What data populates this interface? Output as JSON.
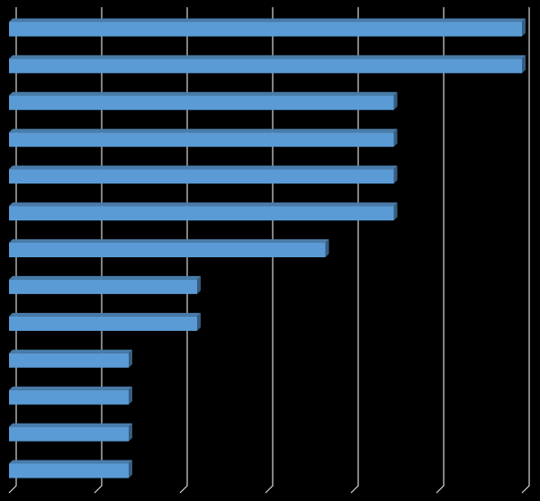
{
  "chart_data": {
    "type": "bar",
    "orientation": "horizontal",
    "categories": [
      null,
      null,
      null,
      null,
      null,
      null,
      null,
      null,
      null,
      null,
      null,
      null,
      null
    ],
    "values": [
      6,
      6,
      4.5,
      4.5,
      4.5,
      4.5,
      3.7,
      2.2,
      2.2,
      1.4,
      1.4,
      1.4,
      1.4
    ],
    "color": "#5b9bd5",
    "xlim": [
      0,
      6
    ],
    "xticks": [
      0,
      1,
      2,
      3,
      4,
      5,
      6
    ],
    "grid": true
  }
}
